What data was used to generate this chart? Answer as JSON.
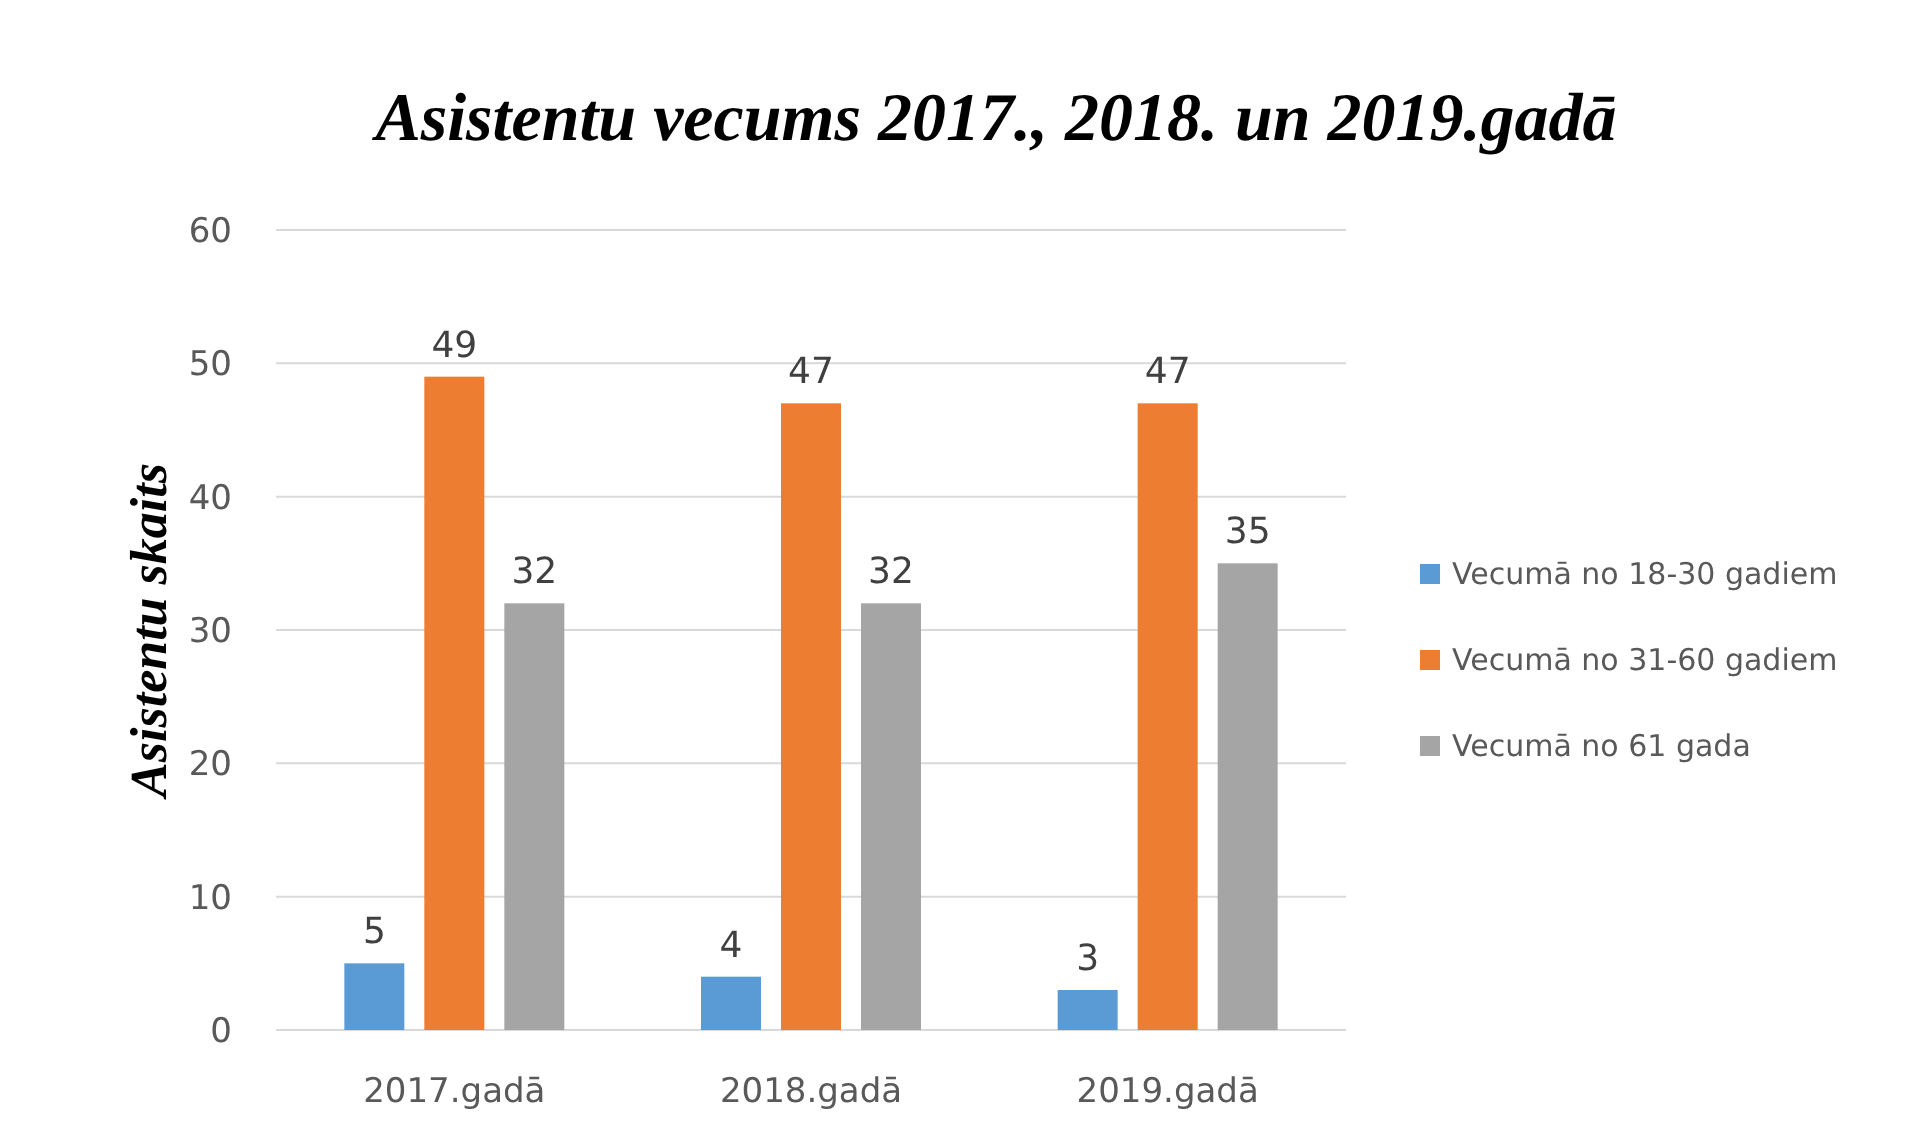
{
  "chart_data": {
    "type": "bar",
    "title": "Asistentu vecums 2017., 2018. un 2019.gadā",
    "ylabel": "Asistentu skaits",
    "categories": [
      "2017.gadā",
      "2018.gadā",
      "2019.gadā"
    ],
    "series": [
      {
        "name": "Vecumā no 18-30 gadiem",
        "color": "#5b9bd5",
        "values": [
          5,
          4,
          3
        ]
      },
      {
        "name": "Vecumā no 31-60 gadiem",
        "color": "#ed7d31",
        "values": [
          49,
          47,
          47
        ]
      },
      {
        "name": "Vecumā no 61 gada",
        "color": "#a5a5a5",
        "values": [
          32,
          32,
          35
        ]
      }
    ],
    "ylim": [
      0,
      60
    ],
    "yticks": [
      0,
      10,
      20,
      30,
      40,
      50,
      60
    ],
    "grid": "y",
    "legend": "right",
    "data_labels": true
  }
}
